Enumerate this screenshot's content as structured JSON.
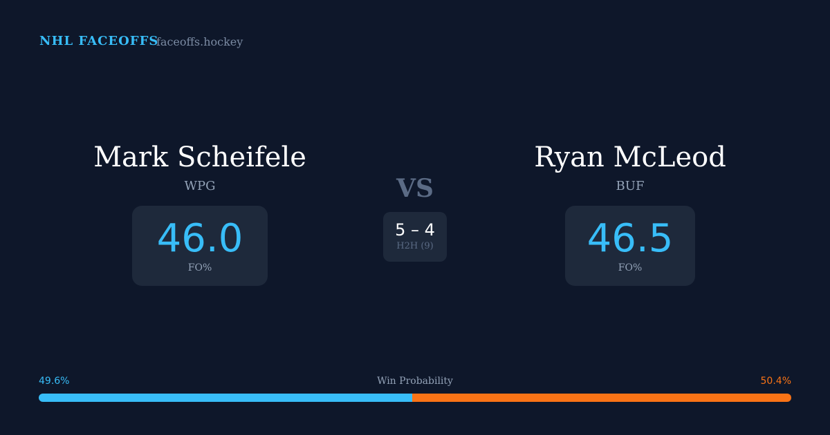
{
  "brand": "NHL FACEOFFS",
  "site": "faceoffs.hockey",
  "left": {
    "name": "Mark Scheifele",
    "team": "WPG",
    "fo": "46.0",
    "fo_label": "FO%"
  },
  "right": {
    "name": "Ryan McLeod",
    "team": "BUF",
    "fo": "46.5",
    "fo_label": "FO%"
  },
  "vs": "VS",
  "h2h": {
    "score": "5 – 4",
    "label": "H2H (9)"
  },
  "win": {
    "label": "Win Probability",
    "left": "49.6%",
    "right": "50.4%",
    "left_value": 49.6,
    "right_value": 50.4,
    "left_color": "#38bdf8",
    "right_color": "#f97316"
  }
}
